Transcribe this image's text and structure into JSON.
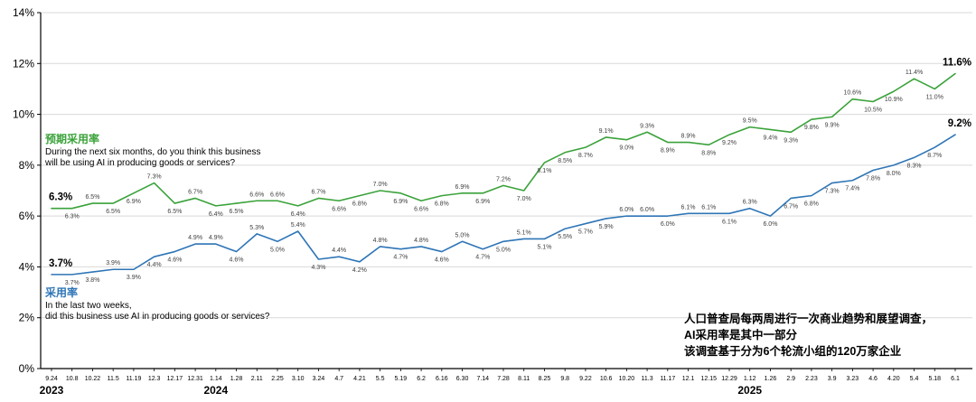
{
  "chart_data": {
    "type": "line",
    "title": "",
    "x": [
      "9.24",
      "10.8",
      "10.22",
      "11.5",
      "11.19",
      "12.3",
      "12.17",
      "12.31",
      "1.14",
      "1.28",
      "2.11",
      "2.25",
      "3.10",
      "3.24",
      "4.7",
      "4.21",
      "5.5",
      "5.19",
      "6.2",
      "6.16",
      "6.30",
      "7.14",
      "7.28",
      "8.11",
      "8.25",
      "9.8",
      "9.22",
      "10.6",
      "10.20",
      "11.3",
      "11.17",
      "12.1",
      "12.15",
      "12.29",
      "1.12",
      "1.26",
      "2.9",
      "2.23",
      "3.9",
      "3.23",
      "4.6",
      "4.20",
      "5.4",
      "5.18",
      "6.1"
    ],
    "year_markers": [
      {
        "label": "2023",
        "index": 0
      },
      {
        "label": "2024",
        "index": 8
      },
      {
        "label": "2025",
        "index": 34
      }
    ],
    "ylim": [
      0,
      14
    ],
    "ytick_step": 2,
    "ytick_suffix": "%",
    "grid": true,
    "grid_color": "#d9d9d9",
    "axis_color": "#000000",
    "label_color": "#404040",
    "legend_position": "inline-annotations",
    "series": [
      {
        "name": "预期采用率",
        "color": "#3aa23a",
        "values": [
          6.3,
          6.3,
          6.5,
          6.5,
          6.9,
          7.3,
          6.5,
          6.7,
          6.4,
          6.5,
          6.6,
          6.6,
          6.4,
          6.7,
          6.6,
          6.8,
          7.0,
          6.9,
          6.6,
          6.8,
          6.9,
          6.9,
          7.2,
          7.0,
          8.1,
          8.5,
          8.7,
          9.1,
          9.0,
          9.3,
          8.9,
          8.9,
          8.8,
          9.2,
          9.5,
          9.4,
          9.3,
          9.8,
          9.9,
          10.6,
          10.5,
          10.9,
          11.4,
          11.0,
          11.6
        ]
      },
      {
        "name": "采用率",
        "color": "#2e75b6",
        "values": [
          3.7,
          3.7,
          3.8,
          3.9,
          3.9,
          4.4,
          4.6,
          4.9,
          4.9,
          4.6,
          5.3,
          5.0,
          5.4,
          4.3,
          4.4,
          4.2,
          4.8,
          4.7,
          4.8,
          4.6,
          5.0,
          4.7,
          5.0,
          5.1,
          5.1,
          5.5,
          5.7,
          5.9,
          6.0,
          6.0,
          6.0,
          6.1,
          6.1,
          6.1,
          6.3,
          6.0,
          6.7,
          6.8,
          7.3,
          7.4,
          7.8,
          8.0,
          8.3,
          8.7,
          9.2
        ]
      }
    ]
  },
  "annotations": {
    "expected": {
      "title": "预期采用率",
      "line1": "During the next six months, do you think this business",
      "line2": "will be using AI in producing goods or services?"
    },
    "adoption": {
      "title": "采用率",
      "line1": "In the last two weeks,",
      "line2": "did this business use AI in producing goods or services?"
    },
    "source": {
      "line1": "人口普查局每两周进行一次商业趋势和展望调查，",
      "line2": "AI采用率是其中一部分",
      "line3": "该调查基于分为6个轮流小组的120万家企业"
    }
  }
}
